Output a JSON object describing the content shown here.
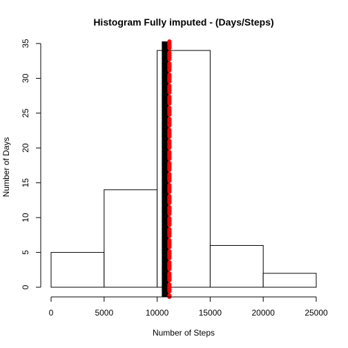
{
  "chart_data": {
    "type": "bar",
    "title": "Histogram Fully imputed - (Days/Steps)",
    "xlabel": "Number of Steps",
    "ylabel": "Number of Days",
    "bins": [
      {
        "from": 0,
        "to": 5000,
        "count": 5
      },
      {
        "from": 5000,
        "to": 10000,
        "count": 14
      },
      {
        "from": 10000,
        "to": 15000,
        "count": 34
      },
      {
        "from": 15000,
        "to": 20000,
        "count": 6
      },
      {
        "from": 20000,
        "to": 25000,
        "count": 2
      }
    ],
    "xlim": [
      0,
      25000
    ],
    "ylim": [
      0,
      35
    ],
    "x_ticks": [
      0,
      5000,
      10000,
      15000,
      20000,
      25000
    ],
    "y_ticks": [
      0,
      5,
      10,
      15,
      20,
      25,
      30,
      35
    ],
    "reference_lines": [
      {
        "stat": "mean",
        "x": 10766.19,
        "color": "#000000",
        "style": "solid"
      },
      {
        "stat": "median",
        "x": 10766.19,
        "color": "#ff0000",
        "style": "dashed"
      }
    ],
    "grid": false,
    "legend": "none"
  }
}
